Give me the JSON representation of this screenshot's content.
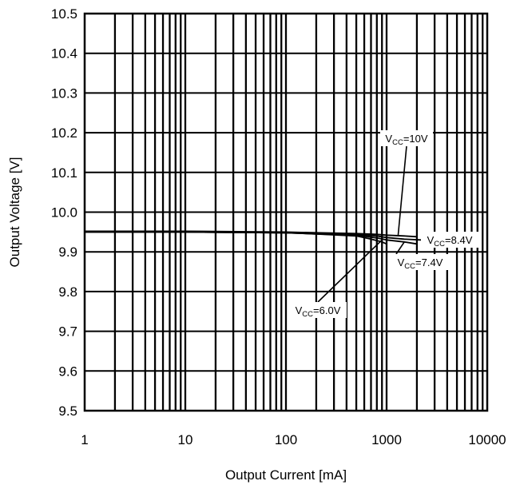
{
  "chart_data": {
    "type": "line",
    "title": "",
    "xlabel": "Output Current [mA]",
    "ylabel": "Output Voltage [V]",
    "xscale": "log",
    "xlim": [
      1,
      10000
    ],
    "ylim": [
      9.5,
      10.5
    ],
    "x_ticks": [
      "1",
      "10",
      "100",
      "1000",
      "10000"
    ],
    "y_ticks": [
      "9.5",
      "9.6",
      "9.7",
      "9.8",
      "9.9",
      "10.0",
      "10.1",
      "10.2",
      "10.3",
      "10.4",
      "10.5"
    ],
    "grid": true,
    "legend": "none",
    "series": [
      {
        "label_main": "V",
        "label_sub": "CC",
        "label_tail": "=6.0V",
        "x": [
          1,
          10,
          100,
          200,
          500,
          700,
          900,
          1000
        ],
        "y": [
          9.95,
          9.95,
          9.948,
          9.945,
          9.94,
          9.932,
          9.925,
          9.92
        ]
      },
      {
        "label_main": "V",
        "label_sub": "CC",
        "label_tail": "=7.4V",
        "x": [
          1,
          10,
          100,
          200,
          500,
          800,
          1000,
          1500,
          2000
        ],
        "y": [
          9.95,
          9.95,
          9.948,
          9.945,
          9.942,
          9.935,
          9.93,
          9.925,
          9.92
        ]
      },
      {
        "label_main": "V",
        "label_sub": "CC",
        "label_tail": "=8.4V",
        "x": [
          1,
          10,
          100,
          200,
          500,
          800,
          1000,
          1500,
          2200
        ],
        "y": [
          9.95,
          9.95,
          9.948,
          9.946,
          9.944,
          9.94,
          9.936,
          9.932,
          9.93
        ]
      },
      {
        "label_main": "V",
        "label_sub": "CC",
        "label_tail": "=10V",
        "x": [
          1,
          10,
          100,
          200,
          500,
          800,
          1000,
          1500,
          2000
        ],
        "y": [
          9.952,
          9.952,
          9.95,
          9.948,
          9.946,
          9.944,
          9.942,
          9.94,
          9.938
        ]
      }
    ]
  }
}
